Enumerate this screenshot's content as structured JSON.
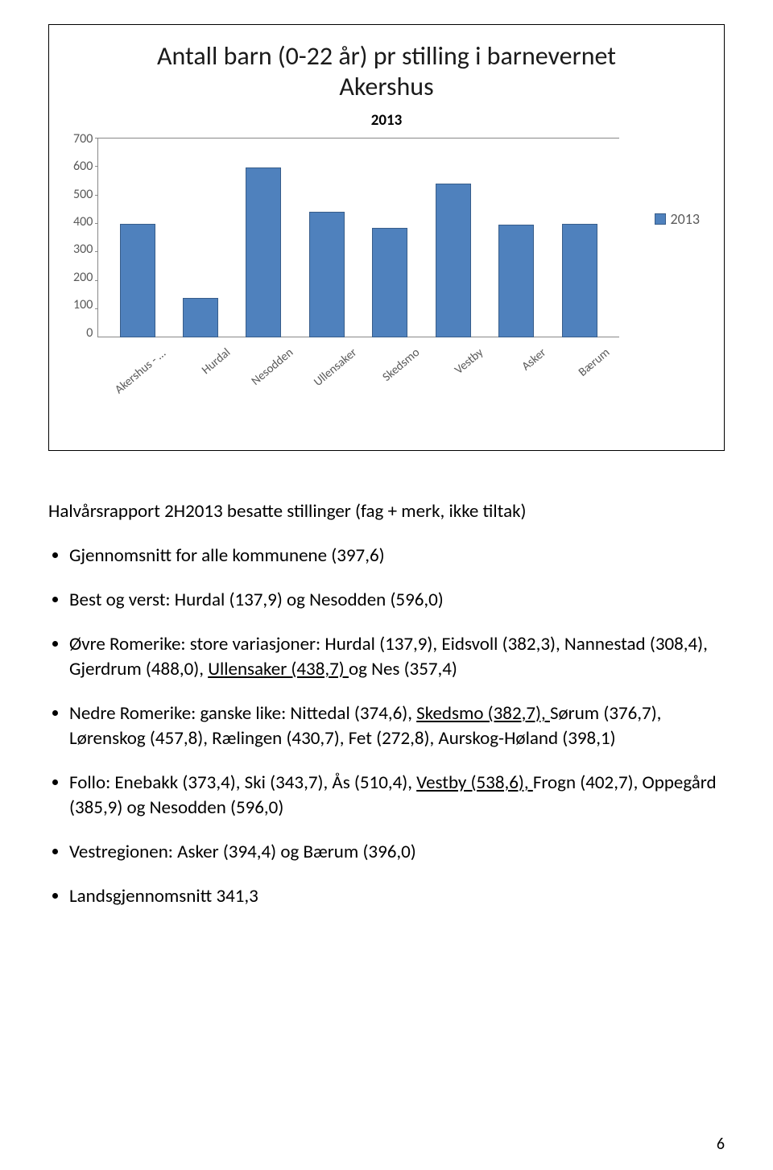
{
  "chart": {
    "title_line1": "Antall barn (0-22 år) pr stilling i barnevernet",
    "title_line2": "Akershus",
    "subtitle": "2013",
    "type": "bar",
    "categories": [
      "Akershus - alle…",
      "Hurdal",
      "Nesodden",
      "Ullensaker",
      "Skedsmo",
      "Vestby",
      "Asker",
      "Bærum"
    ],
    "values": [
      398,
      138,
      596,
      439,
      383,
      539,
      394,
      396
    ],
    "ylim": [
      0,
      700
    ],
    "ytick_step": 100,
    "yticks": [
      "700",
      "600",
      "500",
      "400",
      "300",
      "200",
      "100",
      "0"
    ],
    "bar_color": "#4f81bd",
    "bar_border": "#385d8a",
    "grid_color": "#888888",
    "axis_text_color": "#5a5a5a",
    "background_color": "#ffffff",
    "legend_label": "2013",
    "title_fontsize": 32,
    "label_fontsize": 16
  },
  "body": {
    "intro": "Halvårsrapport 2H2013 besatte stillinger (fag + merk, ikke tiltak)",
    "b1": "Gjennomsnitt for alle kommunene (397,6)",
    "b2": "Best og verst: Hurdal (137,9) og Nesodden (596,0)",
    "b3_pre": "Øvre Romerike: store variasjoner: Hurdal (137,9), Eidsvoll (382,3), Nannestad (308,4), Gjerdrum (488,0), ",
    "b3_u": "Ullensaker (438,7) ",
    "b3_post": "og Nes (357,4)",
    "b4_pre": "Nedre Romerike: ganske like: Nittedal (374,6), ",
    "b4_u": "Skedsmo (382,7), ",
    "b4_mid": "Sørum (376,7), Lørenskog (457,8), Rælingen (430,7), Fet (272,8), Aurskog-Høland (398,1)",
    "b5_pre": "Follo: Enebakk (373,4), Ski (343,7), Ås (510,4), ",
    "b5_u": "Vestby (538,6), ",
    "b5_post": "Frogn (402,7), Oppegård (385,9) og Nesodden (596,0)",
    "b6": "Vestregionen: Asker (394,4) og Bærum (396,0)",
    "b7": "Landsgjennomsnitt 341,3"
  },
  "page_number": "6"
}
